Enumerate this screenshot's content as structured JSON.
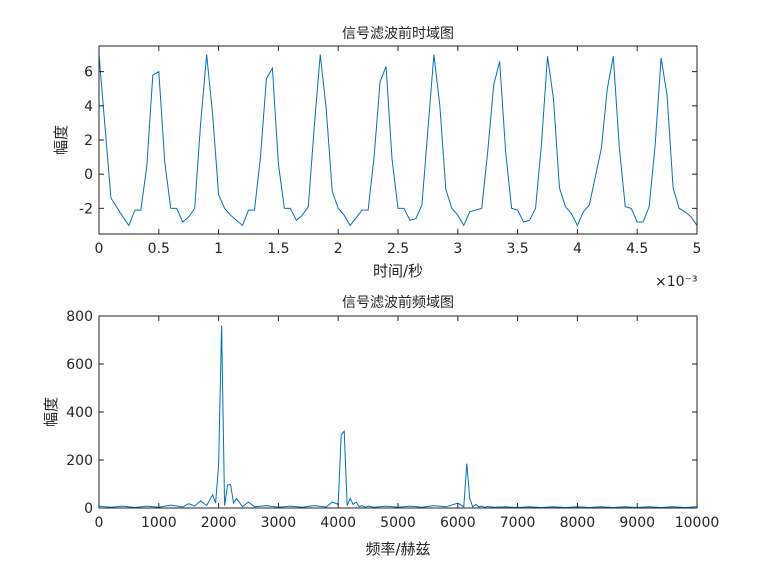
{
  "chart_data": [
    {
      "type": "line",
      "title": "信号滤波前时域图",
      "xlabel": "时间/秒",
      "ylabel": "幅度",
      "x_exponent": "×10⁻³",
      "xlim": [
        0,
        0.005
      ],
      "ylim": [
        -3.5,
        7.5
      ],
      "xticks": [
        0,
        0.0005,
        0.001,
        0.0015,
        0.002,
        0.0025,
        0.003,
        0.0035,
        0.004,
        0.0045,
        0.005
      ],
      "xtick_labels": [
        "0",
        "0.5",
        "1",
        "1.5",
        "2",
        "2.5",
        "3",
        "3.5",
        "4",
        "4.5",
        "5"
      ],
      "yticks": [
        -2,
        0,
        2,
        4,
        6
      ],
      "ytick_labels": [
        "-2",
        "0",
        "2",
        "4",
        "6"
      ],
      "grid": false,
      "color": "#0072BD",
      "series": [
        {
          "x": [
            0,
            0.0001,
            0.0002,
            0.00025,
            0.0003,
            0.00035,
            0.0004,
            0.00045,
            0.0005,
            0.00055,
            0.0006,
            0.00065,
            0.0007,
            0.00075,
            0.0008,
            0.00085,
            0.0009,
            0.00095,
            0.001,
            0.00105,
            0.0011,
            0.0012,
            0.00125,
            0.0013,
            0.00135,
            0.0014,
            0.00145,
            0.0015,
            0.00155,
            0.0016,
            0.00165,
            0.0017,
            0.00175,
            0.0018,
            0.00185,
            0.0019,
            0.00195,
            0.002,
            0.00205,
            0.0021,
            0.0022,
            0.00225,
            0.0023,
            0.00235,
            0.0024,
            0.00245,
            0.0025,
            0.00255,
            0.0026,
            0.00265,
            0.0027,
            0.00275,
            0.0028,
            0.00285,
            0.0029,
            0.00295,
            0.003,
            0.00305,
            0.0031,
            0.0032,
            0.00325,
            0.0033,
            0.00335,
            0.0034,
            0.00345,
            0.0035,
            0.00355,
            0.0036,
            0.00365,
            0.0037,
            0.00375,
            0.0038,
            0.00385,
            0.0039,
            0.00395,
            0.004,
            0.00405,
            0.0041,
            0.0042,
            0.00425,
            0.0043,
            0.00435,
            0.0044,
            0.00445,
            0.0045,
            0.00455,
            0.0046,
            0.00465,
            0.0047,
            0.00475,
            0.0048,
            0.00485,
            0.0049,
            0.00495,
            0.005
          ],
          "y": [
            7.0,
            -1.4,
            -2.5,
            -3.0,
            -2.1,
            -2.1,
            0.5,
            5.8,
            6.0,
            0.7,
            -2.0,
            -2.0,
            -2.8,
            -2.5,
            -2.0,
            3.0,
            7.0,
            3.5,
            -1.2,
            -2.0,
            -2.4,
            -3.0,
            -2.1,
            -2.1,
            1.0,
            5.6,
            6.2,
            0.6,
            -2.0,
            -2.0,
            -2.7,
            -2.4,
            -1.9,
            2.8,
            7.0,
            3.8,
            -1.0,
            -2.0,
            -2.4,
            -3.0,
            -2.1,
            -2.1,
            1.0,
            5.4,
            6.3,
            0.9,
            -2.0,
            -2.0,
            -2.7,
            -2.6,
            -1.8,
            2.6,
            7.0,
            4.0,
            -0.9,
            -2.0,
            -2.4,
            -3.0,
            -2.2,
            -2.0,
            1.3,
            5.2,
            6.6,
            1.3,
            -2.0,
            -2.1,
            -2.8,
            -2.7,
            -2.0,
            1.8,
            6.9,
            4.4,
            -0.8,
            -1.9,
            -2.3,
            -3.0,
            -2.2,
            -1.8,
            1.5,
            5.0,
            6.9,
            1.6,
            -1.9,
            -2.0,
            -2.8,
            -2.8,
            -1.9,
            1.7,
            6.8,
            4.6,
            -0.8,
            -2.0,
            -2.2,
            -2.5,
            -3.0
          ]
        }
      ]
    },
    {
      "type": "line",
      "title": "信号滤波前频域图",
      "xlabel": "频率/赫兹",
      "ylabel": "幅度",
      "xlim": [
        0,
        10000
      ],
      "ylim": [
        0,
        800
      ],
      "xticks": [
        0,
        1000,
        2000,
        3000,
        4000,
        5000,
        6000,
        7000,
        8000,
        9000,
        10000
      ],
      "xtick_labels": [
        "0",
        "1000",
        "2000",
        "3000",
        "4000",
        "5000",
        "6000",
        "7000",
        "8000",
        "9000",
        "10000"
      ],
      "yticks": [
        0,
        200,
        400,
        600,
        800
      ],
      "ytick_labels": [
        "0",
        "200",
        "400",
        "600",
        "800"
      ],
      "grid": false,
      "color": "#0072BD",
      "series": [
        {
          "x": [
            0,
            200,
            400,
            600,
            800,
            1000,
            1200,
            1400,
            1500,
            1600,
            1700,
            1800,
            1900,
            1950,
            2000,
            2050,
            2100,
            2150,
            2200,
            2250,
            2300,
            2400,
            2500,
            2600,
            2800,
            3000,
            3200,
            3400,
            3600,
            3800,
            3900,
            4000,
            4050,
            4100,
            4150,
            4200,
            4250,
            4300,
            4350,
            4400,
            4450,
            4500,
            4600,
            4800,
            5000,
            5200,
            5400,
            5600,
            5800,
            6000,
            6100,
            6150,
            6200,
            6250,
            6300,
            6350,
            6400,
            6450,
            6500,
            6600,
            6800,
            7000,
            7200,
            7400,
            7600,
            7800,
            8000,
            8200,
            8400,
            8600,
            8800,
            9000,
            9200,
            9400,
            9600,
            9800,
            10000
          ],
          "y": [
            8,
            3,
            8,
            2,
            8,
            3,
            12,
            4,
            18,
            8,
            30,
            10,
            55,
            20,
            180,
            760,
            10,
            95,
            98,
            20,
            40,
            5,
            25,
            5,
            10,
            3,
            8,
            3,
            10,
            4,
            25,
            15,
            305,
            320,
            10,
            40,
            15,
            25,
            5,
            10,
            3,
            8,
            3,
            8,
            3,
            8,
            3,
            10,
            5,
            20,
            5,
            185,
            40,
            5,
            15,
            5,
            8,
            3,
            6,
            3,
            5,
            2,
            5,
            2,
            5,
            2,
            5,
            2,
            5,
            2,
            5,
            2,
            5,
            2,
            5,
            2,
            5
          ]
        }
      ]
    }
  ]
}
